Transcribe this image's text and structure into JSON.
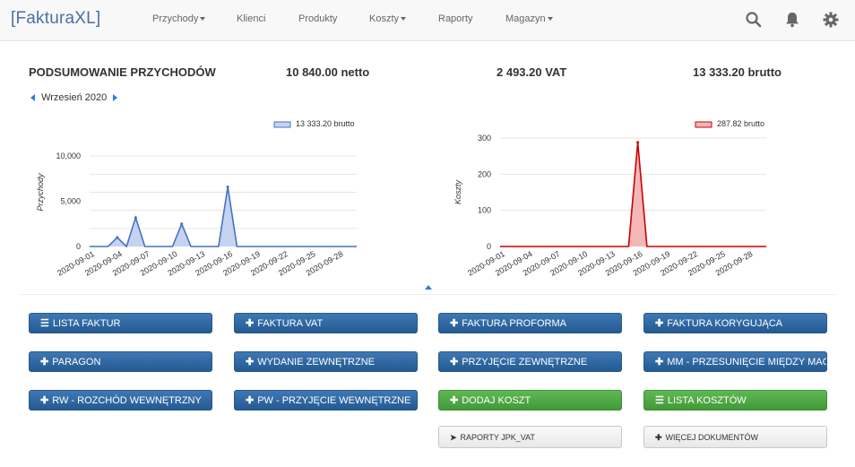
{
  "app": {
    "brand": "[FakturaXL]"
  },
  "nav": {
    "items": [
      {
        "label": "Przychody",
        "dropdown": true
      },
      {
        "label": "Klienci",
        "dropdown": false
      },
      {
        "label": "Produkty",
        "dropdown": false
      },
      {
        "label": "Koszty",
        "dropdown": true
      },
      {
        "label": "Raporty",
        "dropdown": false
      },
      {
        "label": "Magazyn",
        "dropdown": true
      }
    ],
    "icons": [
      "search-icon",
      "bell-icon",
      "gear-icon"
    ]
  },
  "summary": {
    "title": "PODSUMOWANIE PRZYCHODÓW",
    "netto": "10 840.00 netto",
    "vat": "2 493.20 VAT",
    "brutto": "13 333.20 brutto",
    "month": "Wrzesień 2020"
  },
  "chart_data": [
    {
      "type": "area",
      "legend": "13 333.20 brutto",
      "ylabel": "Przychody",
      "ylim": [
        0,
        12000
      ],
      "yticks": [
        "10,000",
        "5,000",
        "0"
      ],
      "ytick_values": [
        10000,
        5000,
        0
      ],
      "xticks": [
        "2020-09-01",
        "2020-09-04",
        "2020-09-07",
        "2020-09-10",
        "2020-09-13",
        "2020-09-16",
        "2020-09-19",
        "2020-09-22",
        "2020-09-25",
        "2020-09-28"
      ],
      "x": [
        "2020-09-01",
        "2020-09-02",
        "2020-09-03",
        "2020-09-04",
        "2020-09-05",
        "2020-09-06",
        "2020-09-07",
        "2020-09-08",
        "2020-09-09",
        "2020-09-10",
        "2020-09-11",
        "2020-09-12",
        "2020-09-13",
        "2020-09-14",
        "2020-09-15",
        "2020-09-16",
        "2020-09-17",
        "2020-09-18",
        "2020-09-19",
        "2020-09-20",
        "2020-09-21",
        "2020-09-22",
        "2020-09-23",
        "2020-09-24",
        "2020-09-25",
        "2020-09-26",
        "2020-09-27",
        "2020-09-28",
        "2020-09-29",
        "2020-09-30"
      ],
      "values": [
        0,
        0,
        0,
        1000,
        0,
        3200,
        0,
        0,
        0,
        0,
        2500,
        0,
        0,
        0,
        0,
        6600,
        0,
        0,
        0,
        0,
        0,
        0,
        0,
        0,
        0,
        0,
        0,
        0,
        0,
        0
      ],
      "color": "#4472c4",
      "fill": "#c5d3f0"
    },
    {
      "type": "area",
      "legend": "287.82 brutto",
      "ylabel": "Koszty",
      "ylim": [
        0,
        300
      ],
      "yticks": [
        "300",
        "200",
        "100",
        "0"
      ],
      "ytick_values": [
        300,
        200,
        100,
        0
      ],
      "xticks": [
        "2020-09-01",
        "2020-09-04",
        "2020-09-07",
        "2020-09-10",
        "2020-09-13",
        "2020-09-16",
        "2020-09-19",
        "2020-09-22",
        "2020-09-25",
        "2020-09-28"
      ],
      "x": [
        "2020-09-01",
        "2020-09-02",
        "2020-09-03",
        "2020-09-04",
        "2020-09-05",
        "2020-09-06",
        "2020-09-07",
        "2020-09-08",
        "2020-09-09",
        "2020-09-10",
        "2020-09-11",
        "2020-09-12",
        "2020-09-13",
        "2020-09-14",
        "2020-09-15",
        "2020-09-16",
        "2020-09-17",
        "2020-09-18",
        "2020-09-19",
        "2020-09-20",
        "2020-09-21",
        "2020-09-22",
        "2020-09-23",
        "2020-09-24",
        "2020-09-25",
        "2020-09-26",
        "2020-09-27",
        "2020-09-28",
        "2020-09-29",
        "2020-09-30"
      ],
      "values": [
        0,
        0,
        0,
        0,
        0,
        0,
        0,
        0,
        0,
        0,
        0,
        0,
        0,
        0,
        0,
        287.82,
        0,
        0,
        0,
        0,
        0,
        0,
        0,
        0,
        0,
        0,
        0,
        0,
        0,
        0
      ],
      "color": "#cc0000",
      "fill": "#f4b7b7"
    }
  ],
  "buttons": {
    "row1": [
      {
        "label": "LISTA FAKTUR",
        "icon": "list-icon",
        "style": "blue"
      },
      {
        "label": "FAKTURA VAT",
        "icon": "plus-icon",
        "style": "blue"
      },
      {
        "label": "FAKTURA PROFORMA",
        "icon": "plus-icon",
        "style": "blue"
      },
      {
        "label": "FAKTURA KORYGUJĄCA",
        "icon": "plus-icon",
        "style": "blue"
      }
    ],
    "row2": [
      {
        "label": "PARAGON",
        "icon": "plus-icon",
        "style": "blue"
      },
      {
        "label": "WYDANIE ZEWNĘTRZNE",
        "icon": "plus-icon",
        "style": "blue"
      },
      {
        "label": "PRZYJĘCIE ZEWNĘTRZNE",
        "icon": "plus-icon",
        "style": "blue"
      },
      {
        "label": "MM - PRZESUNIĘCIE MIĘDZY MAGAZ",
        "icon": "plus-icon",
        "style": "blue"
      }
    ],
    "row3": [
      {
        "label": "RW - ROZCHÓD WEWNĘTRZNY",
        "icon": "plus-icon",
        "style": "blue"
      },
      {
        "label": "PW - PRZYJĘCIE WEWNĘTRZNE",
        "icon": "plus-icon",
        "style": "blue"
      },
      {
        "label": "DODAJ KOSZT",
        "icon": "plus-icon",
        "style": "green"
      },
      {
        "label": "LISTA KOSZTÓW",
        "icon": "list-icon",
        "style": "green"
      }
    ],
    "row4": [
      {
        "label": "RAPORTY JPK_VAT",
        "icon": "circle-arrow-icon",
        "style": "light"
      },
      {
        "label": "WIĘCEJ DOKUMENTÓW",
        "icon": "plus-icon",
        "style": "light"
      }
    ]
  }
}
